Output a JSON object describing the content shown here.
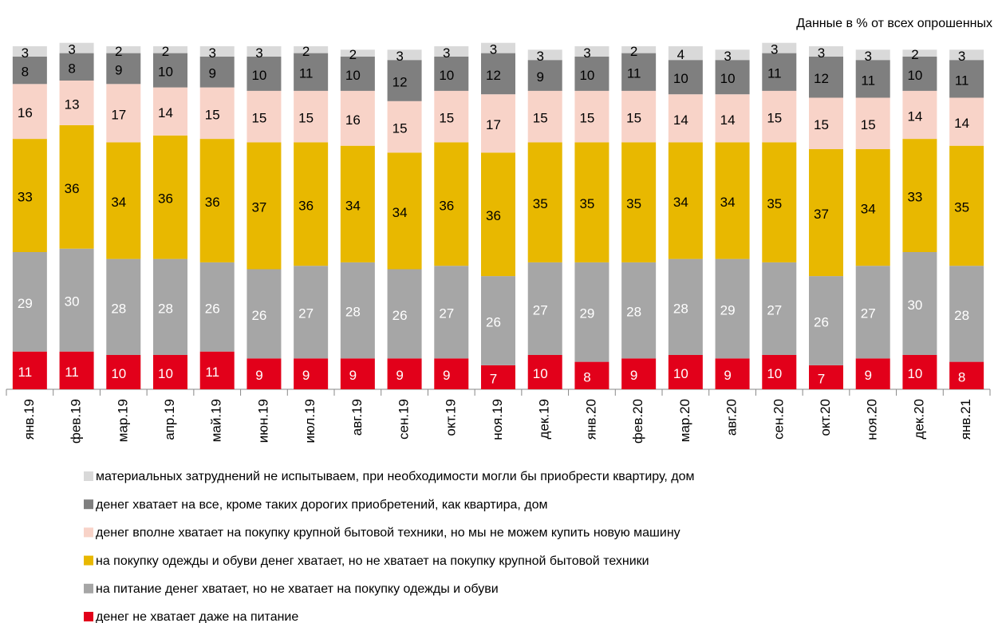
{
  "chart_data": {
    "type": "stacked_bar",
    "note": "Данные в % от всех опрошенных",
    "categories": [
      "янв.19",
      "фев.19",
      "мар.19",
      "апр.19",
      "май.19",
      "июн.19",
      "июл.19",
      "авг.19",
      "сен.19",
      "окт.19",
      "ноя.19",
      "дек.19",
      "янв.20",
      "фев.20",
      "мар.20",
      "авг.20",
      "сен.20",
      "окт.20",
      "ноя.20",
      "дек.20",
      "янв.21"
    ],
    "series": [
      {
        "name": "денег не хватает даже на питание",
        "color": "#e2001a",
        "values": [
          11,
          11,
          10,
          10,
          11,
          9,
          9,
          9,
          9,
          9,
          7,
          10,
          8,
          9,
          10,
          9,
          10,
          7,
          9,
          10,
          8
        ]
      },
      {
        "name": "на питание денег хватает, но не хватает на покупку одежды и обуви",
        "color": "#a6a6a6",
        "values": [
          29,
          30,
          28,
          28,
          26,
          26,
          27,
          28,
          26,
          27,
          26,
          27,
          29,
          28,
          28,
          29,
          27,
          26,
          27,
          30,
          28
        ]
      },
      {
        "name": "на покупку одежды и обуви денег хватает,  но не хватает на покупку крупной бытовой техники",
        "color": "#e8b800",
        "values": [
          33,
          36,
          34,
          36,
          36,
          37,
          36,
          34,
          34,
          36,
          36,
          35,
          35,
          35,
          34,
          34,
          35,
          37,
          34,
          33,
          35
        ]
      },
      {
        "name": "денег вполне хватает на покупку крупной бытовой техники,  но мы не можем купить новую машину",
        "color": "#f8d3c8",
        "values": [
          16,
          13,
          17,
          14,
          15,
          15,
          15,
          16,
          15,
          15,
          17,
          15,
          15,
          15,
          14,
          14,
          15,
          15,
          15,
          14,
          14
        ]
      },
      {
        "name": "денег хватает на все, кроме таких дорогих приобретений, как квартира, дом",
        "color": "#7f7f7f",
        "values": [
          8,
          8,
          9,
          10,
          9,
          10,
          11,
          10,
          12,
          10,
          12,
          9,
          10,
          11,
          10,
          10,
          11,
          12,
          11,
          10,
          11
        ]
      },
      {
        "name": "материальных затруднений не испытываем,  при необходимости могли бы приобрести квартиру, дом",
        "color": "#d9d9d9",
        "values": [
          3,
          3,
          2,
          2,
          3,
          3,
          2,
          2,
          3,
          3,
          3,
          3,
          3,
          2,
          4,
          3,
          3,
          3,
          3,
          2,
          3
        ]
      }
    ]
  }
}
